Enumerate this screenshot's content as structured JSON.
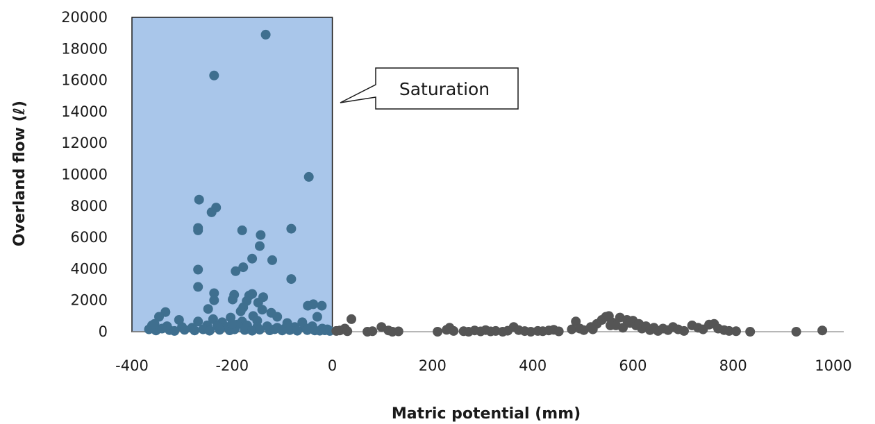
{
  "chart_data": {
    "type": "scatter",
    "xlabel": "Matric potential (mm)",
    "ylabel": "Overland flow (ℓ)",
    "xlim": [
      -400,
      1000
    ],
    "ylim": [
      0,
      20000
    ],
    "xticks": [
      "-400",
      "-200",
      "0",
      "200",
      "400",
      "600",
      "800",
      "1000"
    ],
    "yticks": [
      "0",
      "2000",
      "4000",
      "6000",
      "8000",
      "10000",
      "12000",
      "14000",
      "16000",
      "18000",
      "20000"
    ],
    "grid": false,
    "legend": "none",
    "annotation": {
      "label": "Saturation",
      "region_x": [
        -400,
        0
      ],
      "region_fill": "#a9c6ea",
      "region_stroke": "#1a1a1a"
    },
    "colors": {
      "points": "#555555",
      "points_in_region": "#3f6f8f"
    },
    "series": [
      {
        "points": [
          [
            -133,
            18900
          ],
          [
            -236,
            16300
          ],
          [
            -47,
            9850
          ],
          [
            -266,
            8400
          ],
          [
            -232,
            7900
          ],
          [
            -241,
            7600
          ],
          [
            -268,
            6600
          ],
          [
            -268,
            6450
          ],
          [
            -82,
            6550
          ],
          [
            -180,
            6450
          ],
          [
            -143,
            6150
          ],
          [
            -145,
            5450
          ],
          [
            -160,
            4650
          ],
          [
            -120,
            4550
          ],
          [
            -178,
            4100
          ],
          [
            -193,
            3850
          ],
          [
            -268,
            3950
          ],
          [
            -82,
            3350
          ],
          [
            -268,
            2850
          ],
          [
            -236,
            2450
          ],
          [
            -160,
            2400
          ],
          [
            -196,
            2350
          ],
          [
            -166,
            2300
          ],
          [
            -138,
            2200
          ],
          [
            -199,
            2050
          ],
          [
            -236,
            2000
          ],
          [
            -171,
            1950
          ],
          [
            -148,
            1850
          ],
          [
            -38,
            1750
          ],
          [
            -21,
            1650
          ],
          [
            -49,
            1650
          ],
          [
            -178,
            1550
          ],
          [
            -248,
            1450
          ],
          [
            -140,
            1400
          ],
          [
            -333,
            1250
          ],
          [
            -183,
            1300
          ],
          [
            -122,
            1200
          ],
          [
            -346,
            950
          ],
          [
            -306,
            750
          ],
          [
            -238,
            800
          ],
          [
            -203,
            900
          ],
          [
            -158,
            1000
          ],
          [
            -110,
            950
          ],
          [
            -30,
            950
          ],
          [
            -268,
            650
          ],
          [
            -220,
            600
          ],
          [
            -180,
            650
          ],
          [
            -150,
            700
          ],
          [
            -90,
            550
          ],
          [
            -60,
            600
          ],
          [
            -360,
            400
          ],
          [
            -330,
            350
          ],
          [
            -300,
            300
          ],
          [
            -280,
            250
          ],
          [
            -250,
            400
          ],
          [
            -230,
            350
          ],
          [
            -210,
            300
          ],
          [
            -190,
            450
          ],
          [
            -170,
            400
          ],
          [
            -150,
            300
          ],
          [
            -130,
            350
          ],
          [
            -110,
            250
          ],
          [
            -95,
            200
          ],
          [
            -75,
            300
          ],
          [
            -55,
            250
          ],
          [
            -40,
            350
          ],
          [
            -20,
            200
          ],
          [
            -10,
            150
          ],
          [
            -366,
            150
          ],
          [
            -352,
            80
          ],
          [
            -340,
            200
          ],
          [
            -325,
            100
          ],
          [
            -315,
            50
          ],
          [
            -295,
            120
          ],
          [
            -275,
            80
          ],
          [
            -258,
            150
          ],
          [
            -245,
            60
          ],
          [
            -225,
            120
          ],
          [
            -205,
            90
          ],
          [
            -195,
            150
          ],
          [
            -175,
            110
          ],
          [
            -160,
            60
          ],
          [
            -145,
            130
          ],
          [
            -125,
            90
          ],
          [
            -115,
            160
          ],
          [
            -100,
            80
          ],
          [
            -85,
            100
          ],
          [
            -70,
            60
          ],
          [
            -50,
            100
          ],
          [
            -35,
            80
          ],
          [
            -25,
            60
          ],
          [
            -15,
            90
          ],
          [
            -5,
            50
          ],
          [
            -355,
            500
          ],
          [
            -200,
            500
          ],
          [
            38,
            800
          ],
          [
            25,
            200
          ],
          [
            15,
            80
          ],
          [
            8,
            50
          ],
          [
            30,
            30
          ],
          [
            70,
            0
          ],
          [
            80,
            30
          ],
          [
            98,
            300
          ],
          [
            112,
            80
          ],
          [
            120,
            0
          ],
          [
            132,
            20
          ],
          [
            210,
            0
          ],
          [
            228,
            120
          ],
          [
            234,
            250
          ],
          [
            242,
            50
          ],
          [
            262,
            30
          ],
          [
            272,
            0
          ],
          [
            284,
            80
          ],
          [
            296,
            20
          ],
          [
            306,
            100
          ],
          [
            316,
            20
          ],
          [
            326,
            50
          ],
          [
            340,
            0
          ],
          [
            350,
            60
          ],
          [
            362,
            300
          ],
          [
            372,
            100
          ],
          [
            384,
            40
          ],
          [
            396,
            0
          ],
          [
            410,
            50
          ],
          [
            420,
            30
          ],
          [
            432,
            80
          ],
          [
            442,
            120
          ],
          [
            452,
            20
          ],
          [
            478,
            150
          ],
          [
            486,
            650
          ],
          [
            494,
            200
          ],
          [
            502,
            100
          ],
          [
            516,
            300
          ],
          [
            528,
            500
          ],
          [
            538,
            750
          ],
          [
            546,
            950
          ],
          [
            552,
            1000
          ],
          [
            558,
            600
          ],
          [
            566,
            400
          ],
          [
            574,
            900
          ],
          [
            580,
            250
          ],
          [
            588,
            750
          ],
          [
            594,
            550
          ],
          [
            600,
            700
          ],
          [
            606,
            400
          ],
          [
            612,
            500
          ],
          [
            618,
            200
          ],
          [
            626,
            350
          ],
          [
            634,
            100
          ],
          [
            642,
            250
          ],
          [
            650,
            50
          ],
          [
            660,
            200
          ],
          [
            670,
            100
          ],
          [
            680,
            300
          ],
          [
            690,
            150
          ],
          [
            702,
            50
          ],
          [
            718,
            400
          ],
          [
            730,
            250
          ],
          [
            740,
            150
          ],
          [
            752,
            450
          ],
          [
            762,
            500
          ],
          [
            770,
            200
          ],
          [
            782,
            100
          ],
          [
            792,
            50
          ],
          [
            806,
            30
          ],
          [
            834,
            0
          ],
          [
            926,
            0
          ],
          [
            978,
            80
          ],
          [
            555,
            400
          ],
          [
            520,
            150
          ]
        ]
      }
    ]
  }
}
